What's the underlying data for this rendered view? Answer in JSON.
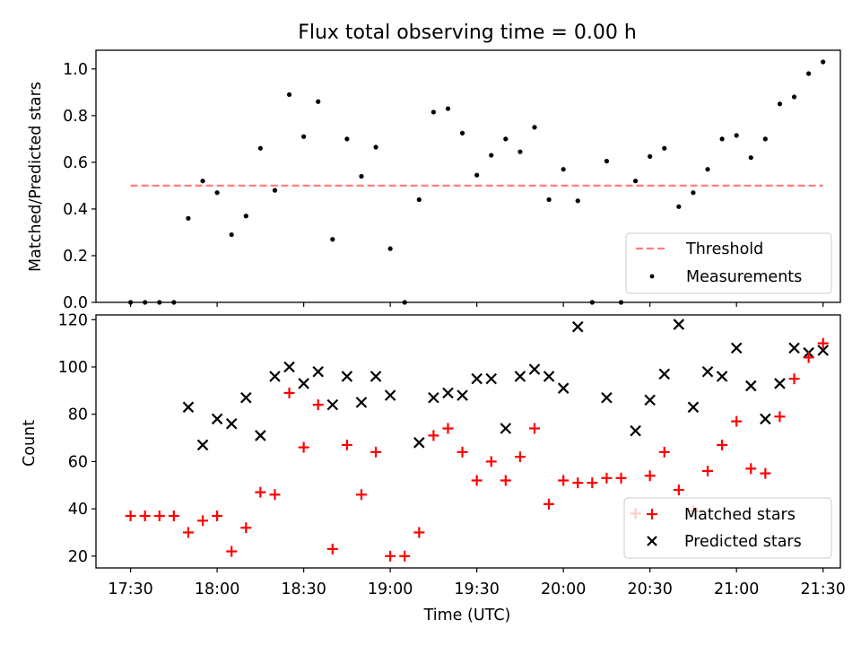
{
  "chart_data": [
    {
      "type": "scatter",
      "title": "Flux total observing time = 0.00 h",
      "xlabel": "",
      "ylabel": "Matched/Predicted stars",
      "ylim": [
        0,
        1.08
      ],
      "xlim": [
        "17:18",
        "21:36"
      ],
      "yticks": [
        "0.0",
        "0.2",
        "0.4",
        "0.6",
        "0.8",
        "1.0"
      ],
      "ytick_values": [
        0,
        0.2,
        0.4,
        0.6,
        0.8,
        1.0
      ],
      "grid": false,
      "legend_position": "lower right",
      "colors": {
        "threshold": "#ff7f7f",
        "measurements": "#000000"
      },
      "series": [
        {
          "name": "Threshold",
          "kind": "dashed-line",
          "x": [
            "17:30",
            "21:30"
          ],
          "y": [
            0.5,
            0.5
          ]
        },
        {
          "name": "Measurements",
          "kind": "dots",
          "x": [
            "17:30",
            "17:35",
            "17:40",
            "17:45",
            "17:50",
            "17:55",
            "18:00",
            "18:05",
            "18:10",
            "18:15",
            "18:20",
            "18:25",
            "18:30",
            "18:35",
            "18:40",
            "18:45",
            "18:50",
            "18:55",
            "19:00",
            "19:05",
            "19:10",
            "19:15",
            "19:20",
            "19:25",
            "19:30",
            "19:35",
            "19:40",
            "19:45",
            "19:50",
            "19:55",
            "20:00",
            "20:05",
            "20:10",
            "20:15",
            "20:20",
            "20:25",
            "20:30",
            "20:35",
            "20:40",
            "20:45",
            "20:50",
            "20:55",
            "21:00",
            "21:05",
            "21:10",
            "21:15",
            "21:20",
            "21:25",
            "21:30"
          ],
          "y": [
            0,
            0,
            0,
            0,
            0.36,
            0.52,
            0.47,
            0.29,
            0.37,
            0.66,
            0.48,
            0.89,
            0.71,
            0.86,
            0.27,
            0.7,
            0.54,
            0.665,
            0.23,
            0,
            0.44,
            0.815,
            0.83,
            0.725,
            0.545,
            0.63,
            0.7,
            0.645,
            0.75,
            0.44,
            0.57,
            0.435,
            0,
            0.605,
            0,
            0.52,
            0.625,
            0.66,
            0.41,
            0.47,
            0.57,
            0.7,
            0.715,
            0.62,
            0.7,
            0.85,
            0.88,
            0.98,
            1.03
          ]
        }
      ]
    },
    {
      "type": "scatter",
      "title": "",
      "xlabel": "Time (UTC)",
      "ylabel": "Count",
      "ylim": [
        15,
        122
      ],
      "xlim": [
        "17:18",
        "21:36"
      ],
      "yticks": [
        "20",
        "40",
        "60",
        "80",
        "100",
        "120"
      ],
      "ytick_values": [
        20,
        40,
        60,
        80,
        100,
        120
      ],
      "xticks": [
        "17:30",
        "18:00",
        "18:30",
        "19:00",
        "19:30",
        "20:00",
        "20:30",
        "21:00",
        "21:30"
      ],
      "grid": false,
      "legend_position": "lower right",
      "colors": {
        "matched": "#ff0000",
        "predicted": "#000000"
      },
      "series": [
        {
          "name": "Matched stars",
          "marker": "plus",
          "x": [
            "17:30",
            "17:35",
            "17:40",
            "17:45",
            "17:50",
            "17:55",
            "18:00",
            "18:05",
            "18:10",
            "18:15",
            "18:20",
            "18:25",
            "18:30",
            "18:35",
            "18:40",
            "18:45",
            "18:50",
            "18:55",
            "19:00",
            "19:05",
            "19:10",
            "19:15",
            "19:20",
            "19:25",
            "19:30",
            "19:35",
            "19:40",
            "19:45",
            "19:50",
            "19:55",
            "20:00",
            "20:05",
            "20:10",
            "20:15",
            "20:20",
            "20:25",
            "20:30",
            "20:35",
            "20:40",
            "20:45",
            "20:50",
            "20:55",
            "21:00",
            "21:05",
            "21:10",
            "21:15",
            "21:20",
            "21:25",
            "21:30"
          ],
          "y": [
            37,
            37,
            37,
            37,
            30,
            35,
            37,
            22,
            32,
            47,
            46,
            89,
            66,
            84,
            23,
            67,
            46,
            64,
            20,
            20,
            30,
            71,
            74,
            64,
            52,
            60,
            52,
            62,
            74,
            42,
            52,
            51,
            51,
            53,
            53,
            38,
            54,
            64,
            48,
            39,
            56,
            67,
            77,
            57,
            55,
            79,
            95,
            104,
            110
          ]
        },
        {
          "name": "Predicted stars",
          "marker": "x",
          "x": [
            "17:50",
            "17:55",
            "18:00",
            "18:05",
            "18:10",
            "18:15",
            "18:20",
            "18:25",
            "18:30",
            "18:35",
            "18:40",
            "18:45",
            "18:50",
            "18:55",
            "19:00",
            "19:10",
            "19:15",
            "19:20",
            "19:25",
            "19:30",
            "19:35",
            "19:40",
            "19:45",
            "19:50",
            "19:55",
            "20:00",
            "20:05",
            "20:15",
            "20:25",
            "20:30",
            "20:35",
            "20:40",
            "20:45",
            "20:50",
            "20:55",
            "21:00",
            "21:05",
            "21:10",
            "21:15",
            "21:20",
            "21:25",
            "21:30"
          ],
          "y": [
            83,
            67,
            78,
            76,
            87,
            71,
            96,
            100,
            93,
            98,
            84,
            96,
            85,
            96,
            88,
            68,
            87,
            89,
            88,
            95,
            95,
            74,
            96,
            99,
            96,
            91,
            117,
            87,
            73,
            86,
            97,
            118,
            83,
            98,
            96,
            108,
            92,
            78,
            93,
            108,
            106,
            107
          ]
        }
      ]
    }
  ]
}
